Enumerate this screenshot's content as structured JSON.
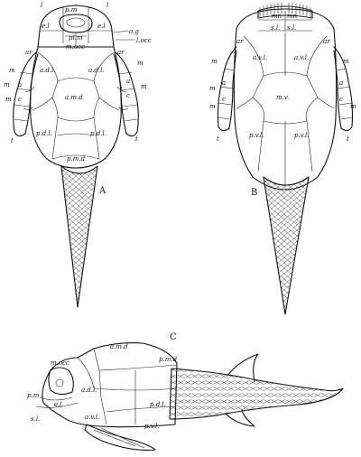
{
  "panels": {
    "A": {
      "letter": "A",
      "labels": {
        "l_left": "l",
        "pm": "p.m",
        "l_right": "l",
        "el_left": "e.l",
        "el_right": "e.l",
        "plm": "pl.m",
        "mocc": "m.occ",
        "og": "o.g",
        "locc": "l.occ",
        "ar_left": "ar",
        "ar_right": "ar",
        "adl_left": "a.d.l.",
        "adl_right": "a.d.l.",
        "amd": "a.m.d",
        "m1_left": "m",
        "m2_left": "m",
        "a_left": "a",
        "c_left": "c",
        "m3_left": "m",
        "t_left": "t",
        "m1_right": "m",
        "m2_right": "m",
        "a_right": "a",
        "c_right": "c",
        "t_right": "t",
        "pdl_left": "p.d.l.",
        "pdl_right": "p.d.l.",
        "pmd": "p.m.d"
      }
    },
    "B": {
      "letter": "B",
      "labels": {
        "mn_left": "mn",
        "mn_right": "mn",
        "sl_left": "s.l.",
        "sl_right": "s.l.",
        "ar_left": "ar",
        "ar_right": "ar",
        "avl_left": "a.v.l.",
        "avl_right": "a.v.l.",
        "mv": "m.v.",
        "pvl_left": "p.v.l.",
        "pvl_right": "p.v.l.",
        "m1_left": "m",
        "m2_left": "m",
        "a_left": "a",
        "c_left": "c",
        "m3_left": "m",
        "t_left": "t",
        "m1_right": "m",
        "a_right": "a",
        "c_right": "c",
        "m2_right": "m",
        "t_right": "t"
      }
    },
    "C": {
      "letter": "C",
      "labels": {
        "amd": "a.m.d",
        "pmd": "p.m.d",
        "mocc": "m.occ",
        "pm": "p.m",
        "el": "e.l",
        "adl": "a.d.l.",
        "pdl": "p.d.l.",
        "sl": "s.l.",
        "avl": "a.v.l.",
        "pvl": "p.v.l."
      }
    }
  }
}
